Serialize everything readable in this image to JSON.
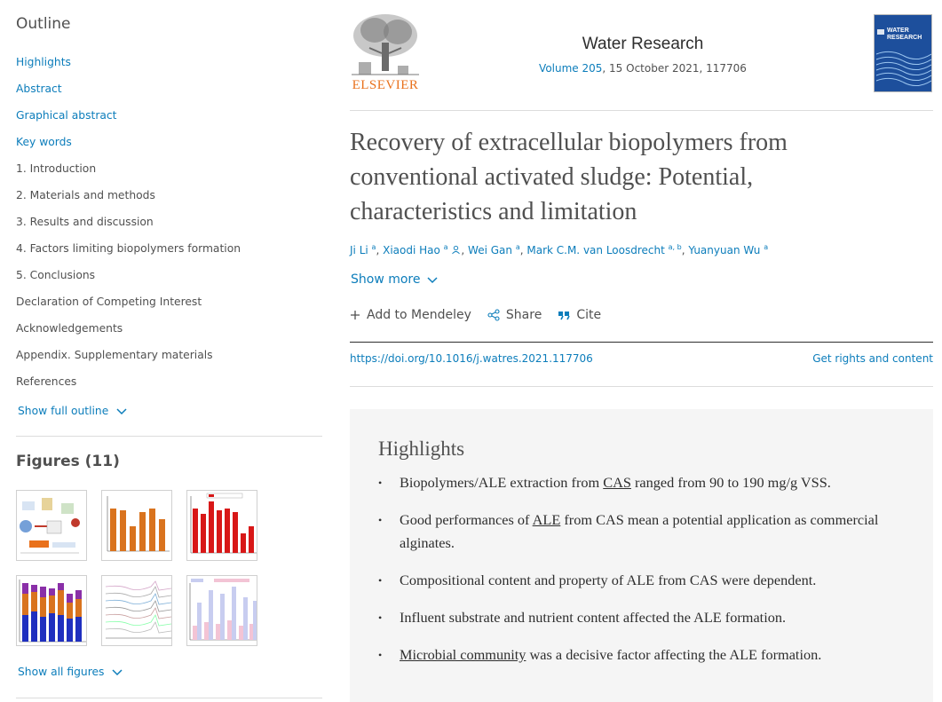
{
  "sidebar": {
    "outline_title": "Outline",
    "outline_items": [
      {
        "label": "Highlights"
      },
      {
        "label": "Abstract"
      },
      {
        "label": "Graphical abstract"
      },
      {
        "label": "Key words"
      },
      {
        "label": "1. Introduction"
      },
      {
        "label": "2. Materials and methods"
      },
      {
        "label": "3. Results and discussion"
      },
      {
        "label": "4. Factors limiting biopolymers formation"
      },
      {
        "label": "5. Conclusions"
      },
      {
        "label": "Declaration of Competing Interest"
      },
      {
        "label": "Acknowledgements"
      },
      {
        "label": "Appendix. Supplementary materials"
      },
      {
        "label": "References"
      }
    ],
    "show_full_outline": "Show full outline",
    "figures_title": "Figures (11)",
    "show_all_figures": "Show all figures"
  },
  "journal": {
    "publisher": "ELSEVIER",
    "name": "Water Research",
    "volume_link": "Volume 205",
    "date_article": ", 15 October 2021, 117706",
    "cover_title_line1": "WATER",
    "cover_title_line2": "RESEARCH"
  },
  "article": {
    "title_line1": "Recovery of extracellular biopolymers from",
    "title_line2": "conventional activated sludge: Potential,",
    "title_line3": "characteristics and limitation",
    "authors": [
      {
        "name": "Ji Li",
        "sup": "a"
      },
      {
        "name": "Xiaodi Hao",
        "sup": "a"
      },
      {
        "name": "Wei Gan",
        "sup": "a"
      },
      {
        "name": "Mark C.M. van Loosdrecht",
        "sup": "a, b"
      },
      {
        "name": "Yuanyuan Wu",
        "sup": "a"
      }
    ],
    "show_more": "Show more",
    "actions": {
      "mendeley": "Add to Mendeley",
      "share": "Share",
      "cite": "Cite"
    },
    "doi": "https://doi.org/10.1016/j.watres.2021.117706",
    "rights": "Get rights and content"
  },
  "highlights": {
    "title": "Highlights",
    "items": [
      {
        "pre": "Biopolymers/ALE extraction from ",
        "link": "CAS",
        "post": " ranged from 90 to 190 mg/g VSS."
      },
      {
        "pre": "Good performances of ",
        "link": "ALE",
        "post": " from CAS mean a potential application as commercial alginates."
      },
      {
        "pre": "Compositional content and property of ALE from CAS were dependent.",
        "link": "",
        "post": ""
      },
      {
        "pre": "Influent substrate and nutrient content affected the ALE formation.",
        "link": "",
        "post": ""
      },
      {
        "pre": "",
        "link": "Microbial community",
        "post": " was a decisive factor affecting the ALE formation."
      }
    ]
  },
  "colors": {
    "link": "#0c7dbb",
    "elsevier_orange": "#e9711c",
    "cover_blue": "#1d4f9c"
  }
}
